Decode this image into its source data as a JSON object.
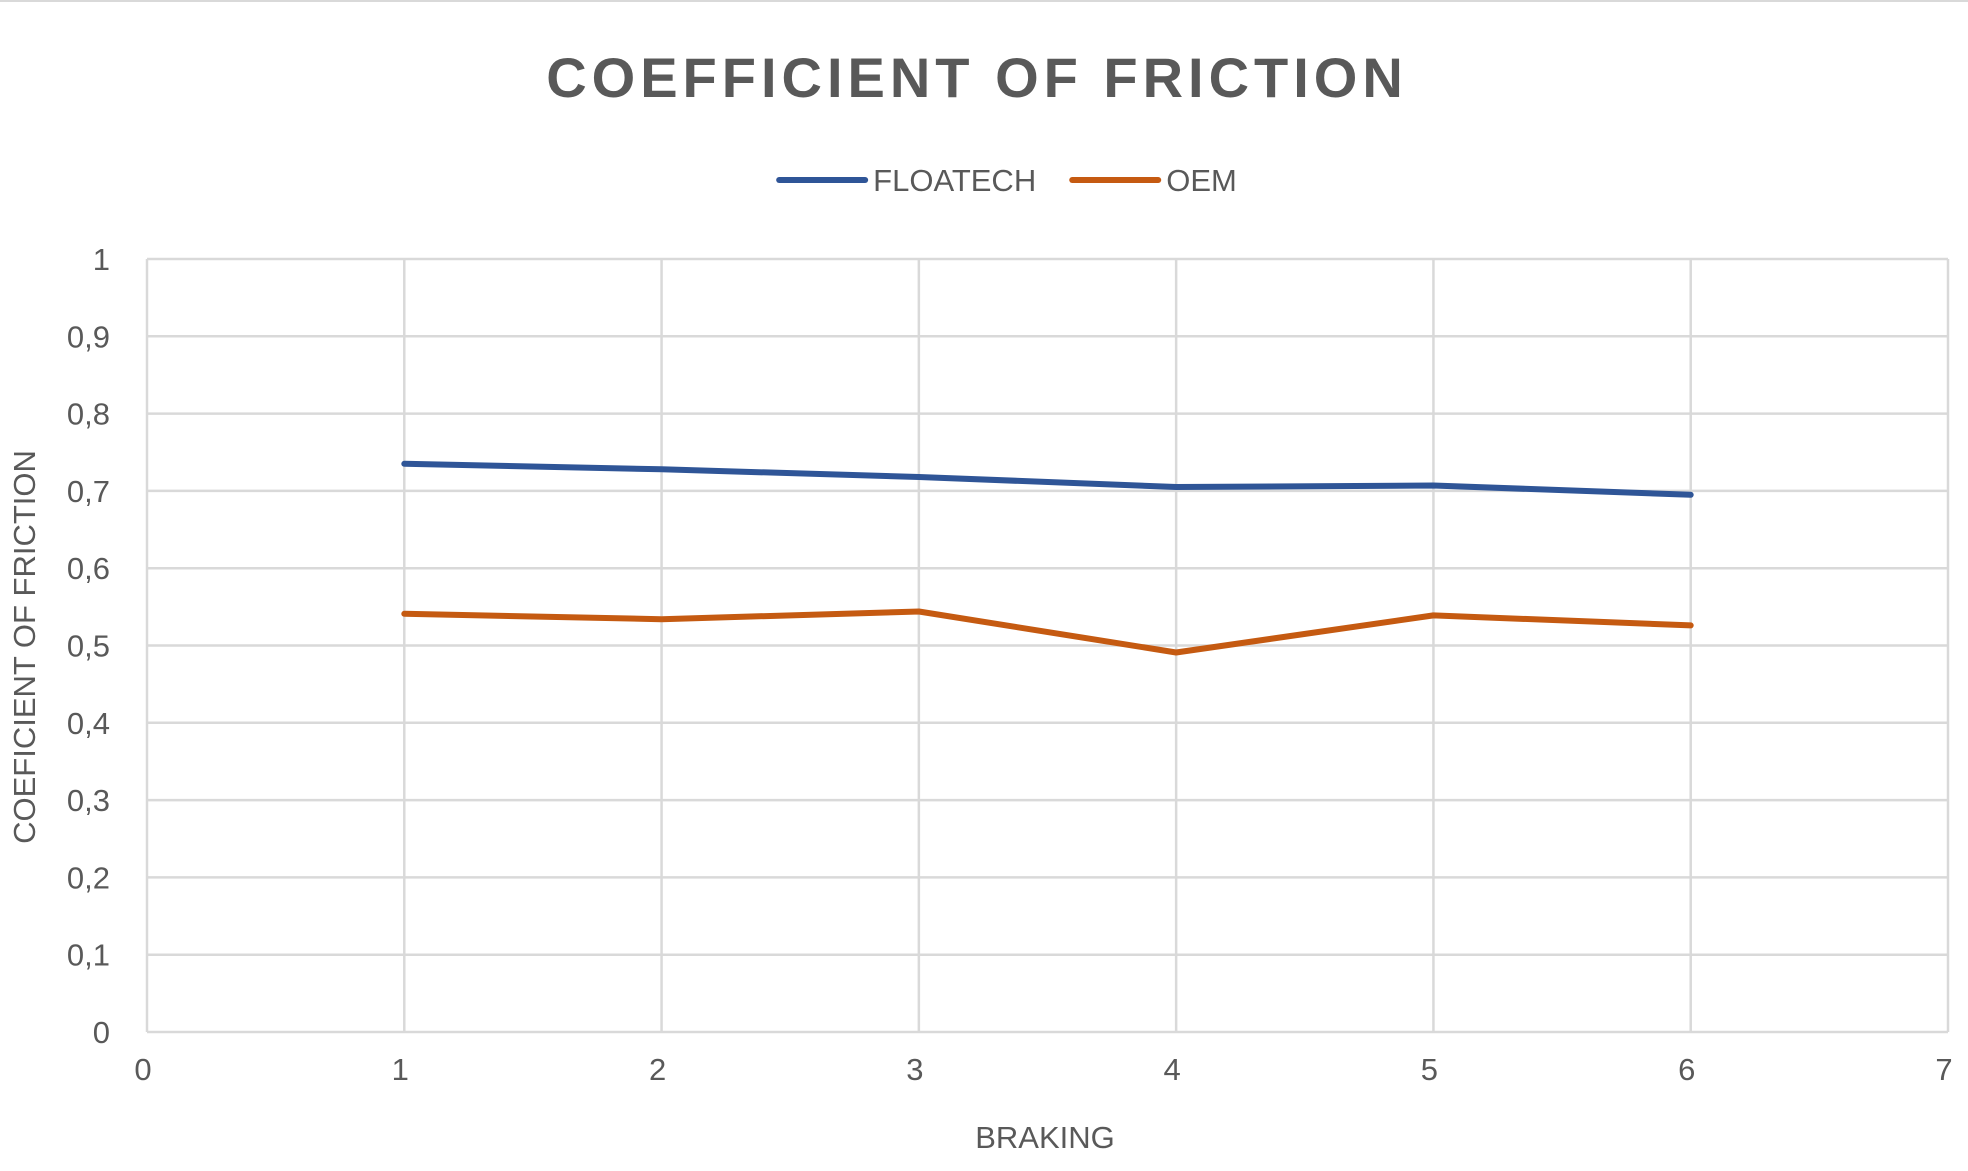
{
  "chart_data": {
    "type": "line",
    "title": "COEFFICIENT OF FRICTION",
    "xlabel": "BRAKING",
    "ylabel": "COEFICIENT OF FRICTION",
    "xlim": [
      0,
      7
    ],
    "ylim": [
      0,
      1
    ],
    "x_ticks": [
      "0",
      "1",
      "2",
      "3",
      "4",
      "5",
      "6",
      "7"
    ],
    "y_ticks": [
      "0",
      "0,1",
      "0,2",
      "0,3",
      "0,4",
      "0,5",
      "0,6",
      "0,7",
      "0,8",
      "0,9",
      "1"
    ],
    "grid": true,
    "legend_position": "top",
    "x": [
      1,
      2,
      3,
      4,
      5,
      6
    ],
    "series": [
      {
        "name": "FLOATECH",
        "color": "#2f5597",
        "values": [
          0.735,
          0.728,
          0.718,
          0.705,
          0.707,
          0.695
        ]
      },
      {
        "name": "OEM",
        "color": "#c55a11",
        "values": [
          0.541,
          0.534,
          0.544,
          0.491,
          0.539,
          0.526
        ]
      }
    ]
  }
}
